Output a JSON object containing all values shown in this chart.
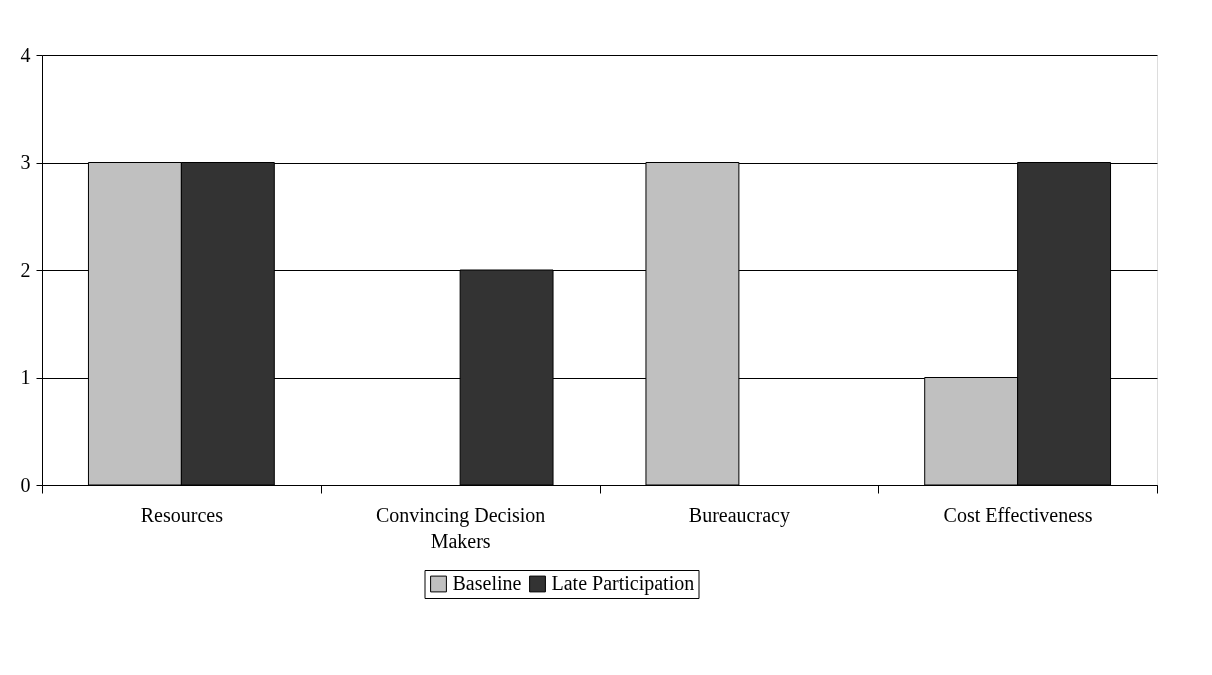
{
  "chart_data": {
    "type": "bar",
    "categories": [
      "Resources",
      "Convincing Decision Makers",
      "Bureaucracy",
      "Cost Effectiveness"
    ],
    "series": [
      {
        "name": "Baseline",
        "color": "#c0c0c0",
        "values": [
          3,
          0,
          3,
          1
        ]
      },
      {
        "name": "Late Participation",
        "color": "#333333",
        "values": [
          3,
          2,
          0,
          3
        ]
      }
    ],
    "ylim": [
      0,
      4
    ],
    "yticks": [
      0,
      1,
      2,
      3,
      4
    ],
    "grid": "y",
    "legend": "bottom"
  }
}
